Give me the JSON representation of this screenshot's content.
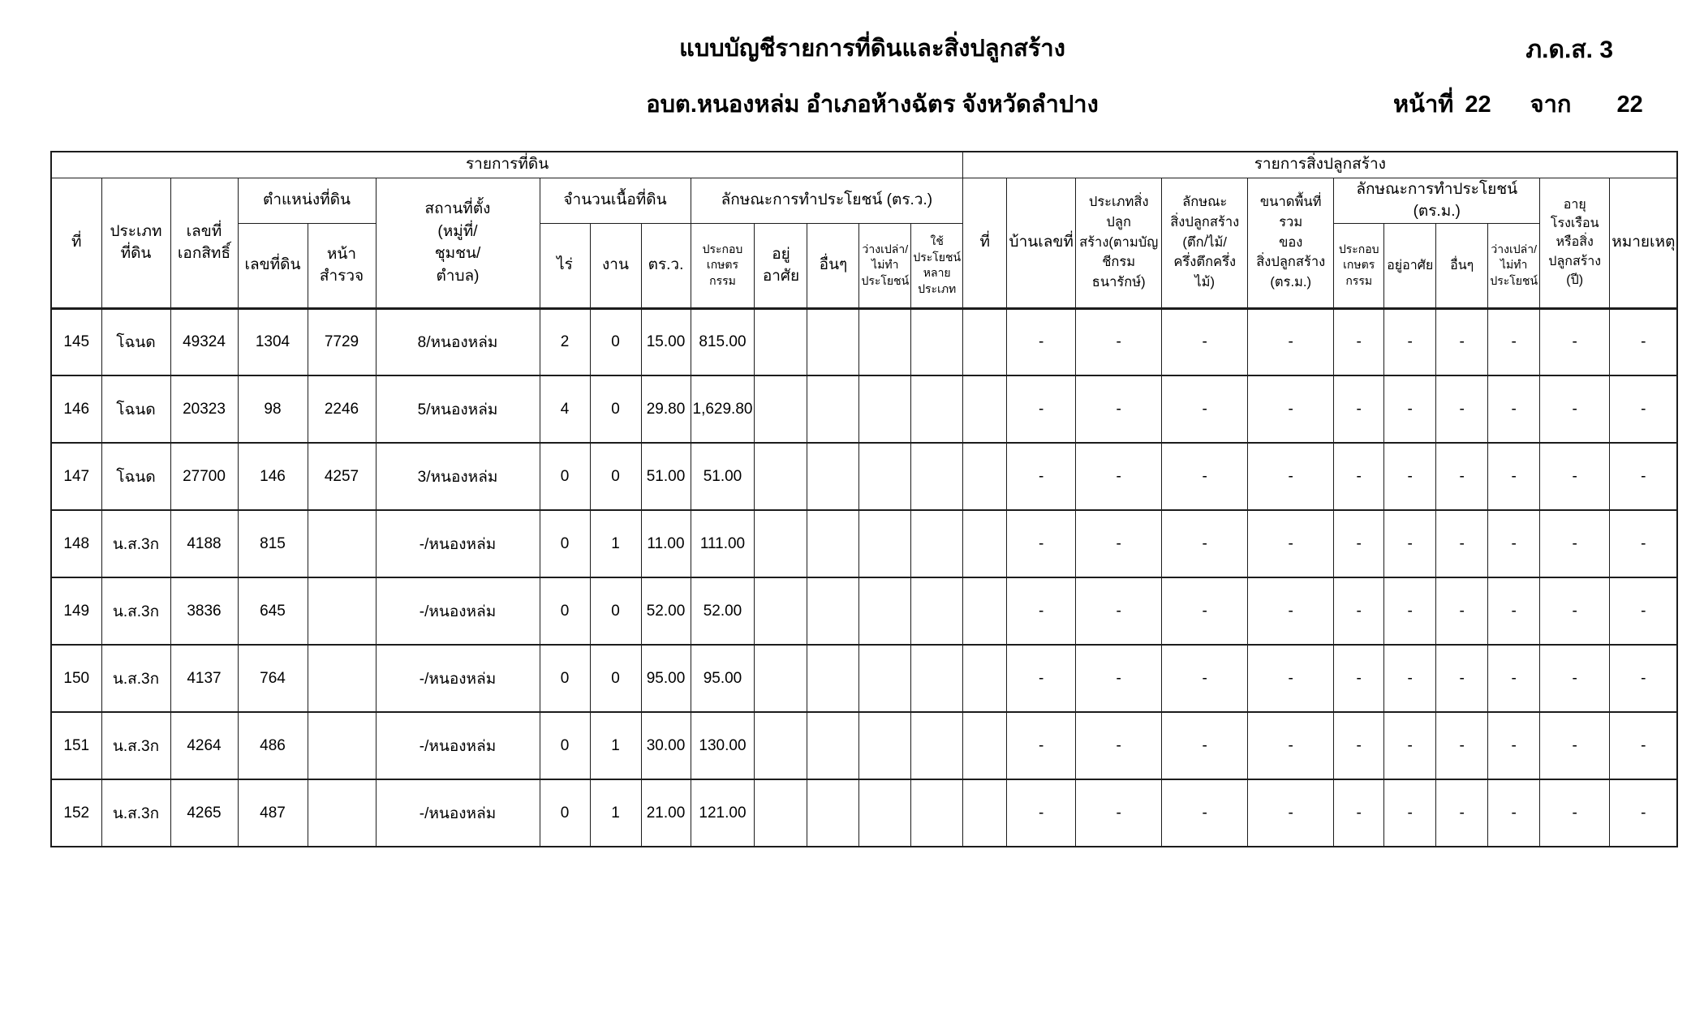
{
  "form": {
    "code": "ภ.ด.ส. 3",
    "title": "แบบบัญชีรายการที่ดินและสิ่งปลูกสร้าง",
    "subtitle": "อบต.หนองหล่ม อำเภอห้างฉัตร จังหวัดลำปาง",
    "page_label": "หน้าที่",
    "page_number": "22",
    "of_label": "จาก",
    "page_total": "22"
  },
  "table": {
    "sections": {
      "land": "รายการที่ดิน",
      "building": "รายการสิ่งปลูกสร้าง"
    },
    "headers": {
      "no": "ที่",
      "land_type": "ประเภท\nที่ดิน",
      "deed_no": "เลขที่\nเอกสิทธิ์",
      "land_position_group": "ตำแหน่งที่ดิน",
      "parcel_no": "เลขที่ดิน",
      "survey_page": "หน้า\nสำรวจ",
      "location": "สถานที่ตั้ง\n(หมู่ที่/\nชุมชน/\nตำบล)",
      "area_group": "จำนวนเนื้อที่ดิน",
      "rai": "ไร่",
      "ngan": "งาน",
      "sq_wa": "ตร.ว.",
      "land_usage_group": "ลักษณะการทำประโยชน์ (ตร.ว.)",
      "agriculture": "ประกอบ\nเกษตร\nกรรม",
      "residential": "อยู่อาศัย",
      "other": "อื่นๆ",
      "vacant": "ว่างเปล่า/\nไม่ทำ\nประโยชน์",
      "multi_use": "ใช้ประโยชน์\nหลาย\nประเภท",
      "b_no": "ที่",
      "house_no": "บ้านเลขที่",
      "building_type": "ประเภทสิ่งปลูก\nสร้าง(ตามบัญ\nชีกรมธนารักษ์)",
      "building_character": "ลักษณะ\nสิ่งปลูกสร้าง\n(ตึก/ไม้/\nครึ่งตึกครึ่งไม้)",
      "building_area": "ขนาดพื้นที่รวม\nของ\nสิ่งปลูกสร้าง\n(ตร.ม.)",
      "building_usage_group": "ลักษณะการทำประโยชน์ (ตร.ม.)",
      "b_agriculture": "ประกอบ\nเกษตร\nกรรม",
      "b_residential": "อยู่อาศัย",
      "b_other": "อื่นๆ",
      "b_vacant": "ว่างเปล่า/\nไม่ทำ\nประโยชน์",
      "building_age": "อายุ\nโรงเรือน\nหรือสิ่ง\nปลูกสร้าง\n(ปี)",
      "remark": "หมายเหตุ"
    },
    "rows": [
      [
        "145",
        "โฉนด",
        "49324",
        "1304",
        "7729",
        "8/หนองหล่ม",
        "2",
        "0",
        "15.00",
        "815.00",
        "",
        "",
        "",
        "",
        "",
        "-",
        "-",
        "-",
        "-",
        "-",
        "-",
        "-",
        "-",
        "-",
        "-"
      ],
      [
        "146",
        "โฉนด",
        "20323",
        "98",
        "2246",
        "5/หนองหล่ม",
        "4",
        "0",
        "29.80",
        "1,629.80",
        "",
        "",
        "",
        "",
        "",
        "-",
        "-",
        "-",
        "-",
        "-",
        "-",
        "-",
        "-",
        "-",
        "-"
      ],
      [
        "147",
        "โฉนด",
        "27700",
        "146",
        "4257",
        "3/หนองหล่ม",
        "0",
        "0",
        "51.00",
        "51.00",
        "",
        "",
        "",
        "",
        "",
        "-",
        "-",
        "-",
        "-",
        "-",
        "-",
        "-",
        "-",
        "-",
        "-"
      ],
      [
        "148",
        "น.ส.3ก",
        "4188",
        "815",
        "",
        "-/หนองหล่ม",
        "0",
        "1",
        "11.00",
        "111.00",
        "",
        "",
        "",
        "",
        "",
        "-",
        "-",
        "-",
        "-",
        "-",
        "-",
        "-",
        "-",
        "-",
        "-"
      ],
      [
        "149",
        "น.ส.3ก",
        "3836",
        "645",
        "",
        "-/หนองหล่ม",
        "0",
        "0",
        "52.00",
        "52.00",
        "",
        "",
        "",
        "",
        "",
        "-",
        "-",
        "-",
        "-",
        "-",
        "-",
        "-",
        "-",
        "-",
        "-"
      ],
      [
        "150",
        "น.ส.3ก",
        "4137",
        "764",
        "",
        "-/หนองหล่ม",
        "0",
        "0",
        "95.00",
        "95.00",
        "",
        "",
        "",
        "",
        "",
        "-",
        "-",
        "-",
        "-",
        "-",
        "-",
        "-",
        "-",
        "-",
        "-"
      ],
      [
        "151",
        "น.ส.3ก",
        "4264",
        "486",
        "",
        "-/หนองหล่ม",
        "0",
        "1",
        "30.00",
        "130.00",
        "",
        "",
        "",
        "",
        "",
        "-",
        "-",
        "-",
        "-",
        "-",
        "-",
        "-",
        "-",
        "-",
        "-"
      ],
      [
        "152",
        "น.ส.3ก",
        "4265",
        "487",
        "",
        "-/หนองหล่ม",
        "0",
        "1",
        "21.00",
        "121.00",
        "",
        "",
        "",
        "",
        "",
        "-",
        "-",
        "-",
        "-",
        "-",
        "-",
        "-",
        "-",
        "-",
        "-"
      ]
    ]
  }
}
